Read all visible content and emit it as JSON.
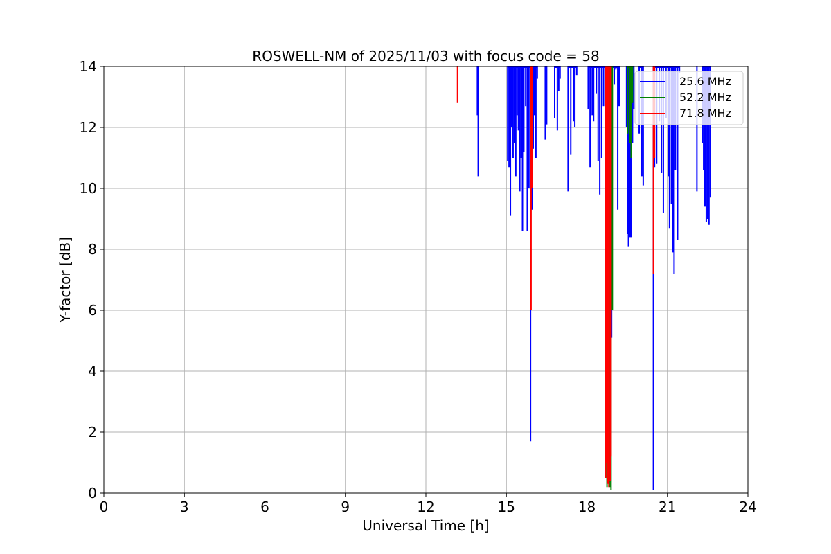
{
  "chart_data": {
    "type": "line",
    "title": "ROSWELL-NM of 2025/11/03 with focus code = 58",
    "xlabel": "Universal Time [h]",
    "ylabel": "Y-factor [dB]",
    "xlim": [
      0,
      24
    ],
    "ylim": [
      0,
      14
    ],
    "xticks": [
      0,
      3,
      6,
      9,
      12,
      15,
      18,
      21,
      24
    ],
    "yticks": [
      0,
      2,
      4,
      6,
      8,
      10,
      12,
      14
    ],
    "grid": true,
    "legend_position": "top-right",
    "series": [
      {
        "name": "25.6 MHz",
        "color": "#0000ff",
        "spikes": [
          [
            13.95,
            10.4
          ],
          [
            13.92,
            12.4
          ],
          [
            15.05,
            10.9
          ],
          [
            15.1,
            10.7
          ],
          [
            15.15,
            9.1
          ],
          [
            15.2,
            12.0
          ],
          [
            15.25,
            11.0
          ],
          [
            15.3,
            11.5
          ],
          [
            15.35,
            10.4
          ],
          [
            15.4,
            12.4
          ],
          [
            15.45,
            11.9
          ],
          [
            15.5,
            9.9
          ],
          [
            15.55,
            11.0
          ],
          [
            15.6,
            8.6
          ],
          [
            15.65,
            11.2
          ],
          [
            15.72,
            12.7
          ],
          [
            15.78,
            8.6
          ],
          [
            15.84,
            10.0
          ],
          [
            15.9,
            1.7
          ],
          [
            15.95,
            9.3
          ],
          [
            16.0,
            11.3
          ],
          [
            16.05,
            12.4
          ],
          [
            16.1,
            11.0
          ],
          [
            16.15,
            13.6
          ],
          [
            16.45,
            11.6
          ],
          [
            16.5,
            12.1
          ],
          [
            16.8,
            12.3
          ],
          [
            16.9,
            11.9
          ],
          [
            16.95,
            13.2
          ],
          [
            17.0,
            13.6
          ],
          [
            17.3,
            9.9
          ],
          [
            17.4,
            11.1
          ],
          [
            17.5,
            12.2
          ],
          [
            17.55,
            12.0
          ],
          [
            17.62,
            13.7
          ],
          [
            18.05,
            12.6
          ],
          [
            18.12,
            10.7
          ],
          [
            18.2,
            12.4
          ],
          [
            18.25,
            12.2
          ],
          [
            18.35,
            13.1
          ],
          [
            18.42,
            10.9
          ],
          [
            18.48,
            9.8
          ],
          [
            18.55,
            11.0
          ],
          [
            18.62,
            12.7
          ],
          [
            18.7,
            11.4
          ],
          [
            18.75,
            2.5
          ],
          [
            18.8,
            0.8
          ],
          [
            18.85,
            4.8
          ],
          [
            18.92,
            5.1
          ],
          [
            19.02,
            13.4
          ],
          [
            19.08,
            13.9
          ],
          [
            19.15,
            9.3
          ],
          [
            19.2,
            12.7
          ],
          [
            19.48,
            12.0
          ],
          [
            19.52,
            8.5
          ],
          [
            19.55,
            8.1
          ],
          [
            19.6,
            8.4
          ],
          [
            19.65,
            8.4
          ],
          [
            19.7,
            11.5
          ],
          [
            19.75,
            12.6
          ],
          [
            19.95,
            11.8
          ],
          [
            20.05,
            10.4
          ],
          [
            20.1,
            10.1
          ],
          [
            20.48,
            0.1
          ],
          [
            20.52,
            10.7
          ],
          [
            20.6,
            10.8
          ],
          [
            20.7,
            12.2
          ],
          [
            20.78,
            10.5
          ],
          [
            20.85,
            9.2
          ],
          [
            20.95,
            12.3
          ],
          [
            21.05,
            10.4
          ],
          [
            21.08,
            8.7
          ],
          [
            21.15,
            9.5
          ],
          [
            21.2,
            7.9
          ],
          [
            21.25,
            7.2
          ],
          [
            21.3,
            10.6
          ],
          [
            21.38,
            8.3
          ],
          [
            21.45,
            13.8
          ],
          [
            22.1,
            9.9
          ],
          [
            22.3,
            11.5
          ],
          [
            22.35,
            10.6
          ],
          [
            22.4,
            9.4
          ],
          [
            22.45,
            8.9
          ],
          [
            22.5,
            9.0
          ],
          [
            22.55,
            8.8
          ],
          [
            22.6,
            9.7
          ]
        ]
      },
      {
        "name": "52.2 MHz",
        "color": "#008000",
        "spikes": [
          [
            18.75,
            0.2
          ],
          [
            18.8,
            1.5
          ],
          [
            18.85,
            0.2
          ],
          [
            18.9,
            0.1
          ],
          [
            18.95,
            6.0
          ],
          [
            19.52,
            11.8
          ],
          [
            19.6,
            11.5
          ],
          [
            19.65,
            11.0
          ],
          [
            19.7,
            12.8
          ]
        ]
      },
      {
        "name": "71.8 MHz",
        "color": "#ff0000",
        "spikes": [
          [
            13.18,
            12.8
          ],
          [
            15.92,
            6.0
          ],
          [
            15.95,
            10.0
          ],
          [
            18.7,
            0.5
          ],
          [
            18.72,
            1.0
          ],
          [
            18.78,
            0.3
          ],
          [
            18.82,
            0.2
          ],
          [
            18.87,
            0.4
          ],
          [
            18.9,
            1.2
          ],
          [
            20.48,
            7.2
          ],
          [
            20.52,
            11.0
          ]
        ]
      }
    ]
  }
}
